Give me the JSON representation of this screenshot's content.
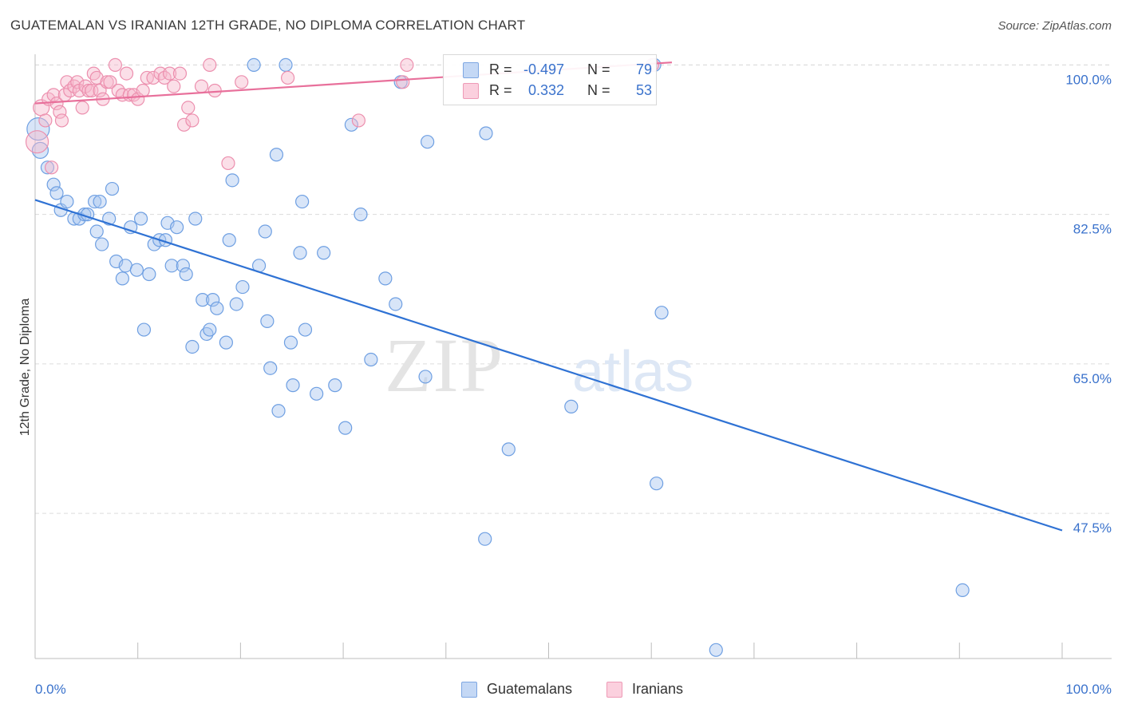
{
  "header": {
    "title": "GUATEMALAN VS IRANIAN 12TH GRADE, NO DIPLOMA CORRELATION CHART",
    "source": "Source: ZipAtlas.com"
  },
  "watermark": {
    "zip": "ZIP",
    "atlas": "atlas"
  },
  "legend": {
    "rows": [
      {
        "r_label": "R =",
        "r_value": "-0.497",
        "n_label": "N =",
        "n_value": "79",
        "color": "#a8c5ef"
      },
      {
        "r_label": "R =",
        "r_value": "0.332",
        "n_label": "N =",
        "n_value": "53",
        "color": "#f7b8cc"
      }
    ]
  },
  "bottom_legend": {
    "items": [
      {
        "label": "Guatemalans",
        "color": "#a8c5ef"
      },
      {
        "label": "Iranians",
        "color": "#f7b8cc"
      }
    ]
  },
  "chart_data": {
    "type": "scatter",
    "xlabel": "",
    "ylabel": "12th Grade, No Diploma",
    "xlim": [
      0,
      100
    ],
    "ylim": [
      30.5,
      102
    ],
    "x_tick_labels": [
      "0.0%",
      "100.0%"
    ],
    "y_ticks": [
      47.5,
      65.0,
      82.5,
      100.0
    ],
    "y_tick_labels": [
      "47.5%",
      "65.0%",
      "82.5%",
      "100.0%"
    ],
    "grid": true,
    "legend_position": "top-center",
    "colors": {
      "guatemalans": "#3f7fd6",
      "iranians": "#e8709b",
      "tick_text": "#3a72cc"
    },
    "series": [
      {
        "name": "Guatemalans",
        "color": "#a8c5ef",
        "stroke": "#6e9fe2",
        "trend": {
          "x": [
            0,
            100
          ],
          "y": [
            84.2,
            45.5
          ],
          "color": "#2f72d4"
        },
        "points": [
          [
            0.3,
            92.5,
            14
          ],
          [
            0.5,
            90.0,
            10
          ],
          [
            1.2,
            88.0,
            8
          ],
          [
            1.8,
            86.0,
            8
          ],
          [
            2.1,
            85.0,
            8
          ],
          [
            2.5,
            83.0,
            8
          ],
          [
            3.1,
            84.0,
            8
          ],
          [
            3.8,
            82.0,
            8
          ],
          [
            4.3,
            82.0,
            8
          ],
          [
            4.8,
            82.5,
            8
          ],
          [
            5.1,
            82.5,
            8
          ],
          [
            5.8,
            84.0,
            8
          ],
          [
            6.0,
            80.5,
            8
          ],
          [
            6.3,
            84.0,
            8
          ],
          [
            6.5,
            79.0,
            8
          ],
          [
            7.2,
            82.0,
            8
          ],
          [
            7.5,
            85.5,
            8
          ],
          [
            7.9,
            77.0,
            8
          ],
          [
            8.5,
            75.0,
            8
          ],
          [
            8.8,
            76.5,
            8
          ],
          [
            9.3,
            81.0,
            8
          ],
          [
            9.9,
            76.0,
            8
          ],
          [
            10.3,
            82.0,
            8
          ],
          [
            10.6,
            69.0,
            8
          ],
          [
            11.1,
            75.5,
            8
          ],
          [
            11.6,
            79.0,
            8
          ],
          [
            12.1,
            79.5,
            8
          ],
          [
            12.7,
            79.5,
            8
          ],
          [
            12.9,
            81.5,
            8
          ],
          [
            13.3,
            76.5,
            8
          ],
          [
            13.8,
            81.0,
            8
          ],
          [
            14.4,
            76.5,
            8
          ],
          [
            14.7,
            75.5,
            8
          ],
          [
            15.3,
            67.0,
            8
          ],
          [
            15.6,
            82.0,
            8
          ],
          [
            16.3,
            72.5,
            8
          ],
          [
            16.7,
            68.5,
            8
          ],
          [
            17.0,
            69.0,
            8
          ],
          [
            17.3,
            72.5,
            8
          ],
          [
            17.7,
            71.5,
            8
          ],
          [
            18.6,
            67.5,
            8
          ],
          [
            18.9,
            79.5,
            8
          ],
          [
            19.2,
            86.5,
            8
          ],
          [
            19.6,
            72.0,
            8
          ],
          [
            20.2,
            74.0,
            8
          ],
          [
            21.3,
            100.0,
            8
          ],
          [
            21.8,
            76.5,
            8
          ],
          [
            22.4,
            80.5,
            8
          ],
          [
            22.6,
            70.0,
            8
          ],
          [
            22.9,
            64.5,
            8
          ],
          [
            23.5,
            89.5,
            8
          ],
          [
            23.7,
            59.5,
            8
          ],
          [
            24.4,
            100.0,
            8
          ],
          [
            24.9,
            67.5,
            8
          ],
          [
            25.1,
            62.5,
            8
          ],
          [
            25.8,
            78.0,
            8
          ],
          [
            26.0,
            84.0,
            8
          ],
          [
            26.3,
            69.0,
            8
          ],
          [
            27.4,
            61.5,
            8
          ],
          [
            28.1,
            78.0,
            8
          ],
          [
            29.2,
            62.5,
            8
          ],
          [
            30.2,
            57.5,
            8
          ],
          [
            30.8,
            93.0,
            8
          ],
          [
            31.7,
            82.5,
            8
          ],
          [
            32.7,
            65.5,
            8
          ],
          [
            34.1,
            75.0,
            8
          ],
          [
            35.1,
            72.0,
            8
          ],
          [
            35.6,
            98.0,
            8
          ],
          [
            38.0,
            63.5,
            8
          ],
          [
            38.2,
            91.0,
            8
          ],
          [
            43.8,
            44.5,
            8
          ],
          [
            43.9,
            92.0,
            8
          ],
          [
            46.1,
            55.0,
            8
          ],
          [
            52.2,
            60.0,
            8
          ],
          [
            60.3,
            100.0,
            8
          ],
          [
            60.5,
            51.0,
            8
          ],
          [
            61.0,
            71.0,
            8
          ],
          [
            66.3,
            31.5,
            8
          ],
          [
            90.3,
            38.5,
            8
          ]
        ]
      },
      {
        "name": "Iranians",
        "color": "#f7b8cc",
        "stroke": "#ec8fae",
        "trend": {
          "x": [
            0,
            62
          ],
          "y": [
            95.5,
            100.3
          ],
          "color": "#e8709b"
        },
        "points": [
          [
            0.2,
            91.0,
            14
          ],
          [
            0.6,
            95.0,
            10
          ],
          [
            1.0,
            93.5,
            8
          ],
          [
            1.3,
            96.0,
            8
          ],
          [
            1.6,
            88.0,
            8
          ],
          [
            1.8,
            96.5,
            8
          ],
          [
            2.1,
            95.5,
            8
          ],
          [
            2.4,
            94.5,
            8
          ],
          [
            2.6,
            93.5,
            8
          ],
          [
            2.9,
            96.5,
            8
          ],
          [
            3.1,
            98.0,
            8
          ],
          [
            3.4,
            97.0,
            8
          ],
          [
            3.8,
            97.5,
            8
          ],
          [
            4.1,
            98.0,
            8
          ],
          [
            4.3,
            97.0,
            8
          ],
          [
            4.6,
            95.0,
            8
          ],
          [
            4.9,
            97.5,
            8
          ],
          [
            5.2,
            97.0,
            8
          ],
          [
            5.5,
            97.0,
            8
          ],
          [
            5.7,
            99.0,
            8
          ],
          [
            6.0,
            98.5,
            8
          ],
          [
            6.3,
            97.0,
            8
          ],
          [
            6.6,
            96.0,
            8
          ],
          [
            7.0,
            98.0,
            8
          ],
          [
            7.3,
            98.0,
            8
          ],
          [
            7.8,
            100.0,
            8
          ],
          [
            8.1,
            97.0,
            8
          ],
          [
            8.5,
            96.5,
            8
          ],
          [
            8.9,
            99.0,
            8
          ],
          [
            9.2,
            96.5,
            8
          ],
          [
            9.6,
            96.5,
            8
          ],
          [
            10.0,
            96.0,
            8
          ],
          [
            10.5,
            97.0,
            8
          ],
          [
            10.9,
            98.5,
            8
          ],
          [
            11.5,
            98.5,
            8
          ],
          [
            12.2,
            99.0,
            8
          ],
          [
            12.6,
            98.5,
            8
          ],
          [
            13.1,
            99.0,
            8
          ],
          [
            13.5,
            97.5,
            8
          ],
          [
            14.1,
            99.0,
            8
          ],
          [
            14.5,
            93.0,
            8
          ],
          [
            14.9,
            95.0,
            8
          ],
          [
            15.3,
            93.5,
            8
          ],
          [
            16.2,
            97.5,
            8
          ],
          [
            17.0,
            100.0,
            8
          ],
          [
            17.5,
            97.0,
            8
          ],
          [
            18.8,
            88.5,
            8
          ],
          [
            20.1,
            98.0,
            8
          ],
          [
            24.6,
            98.5,
            8
          ],
          [
            31.5,
            93.5,
            8
          ],
          [
            35.8,
            98.0,
            8
          ],
          [
            36.2,
            100.0,
            8
          ],
          [
            60.1,
            100.0,
            8
          ]
        ]
      }
    ]
  }
}
